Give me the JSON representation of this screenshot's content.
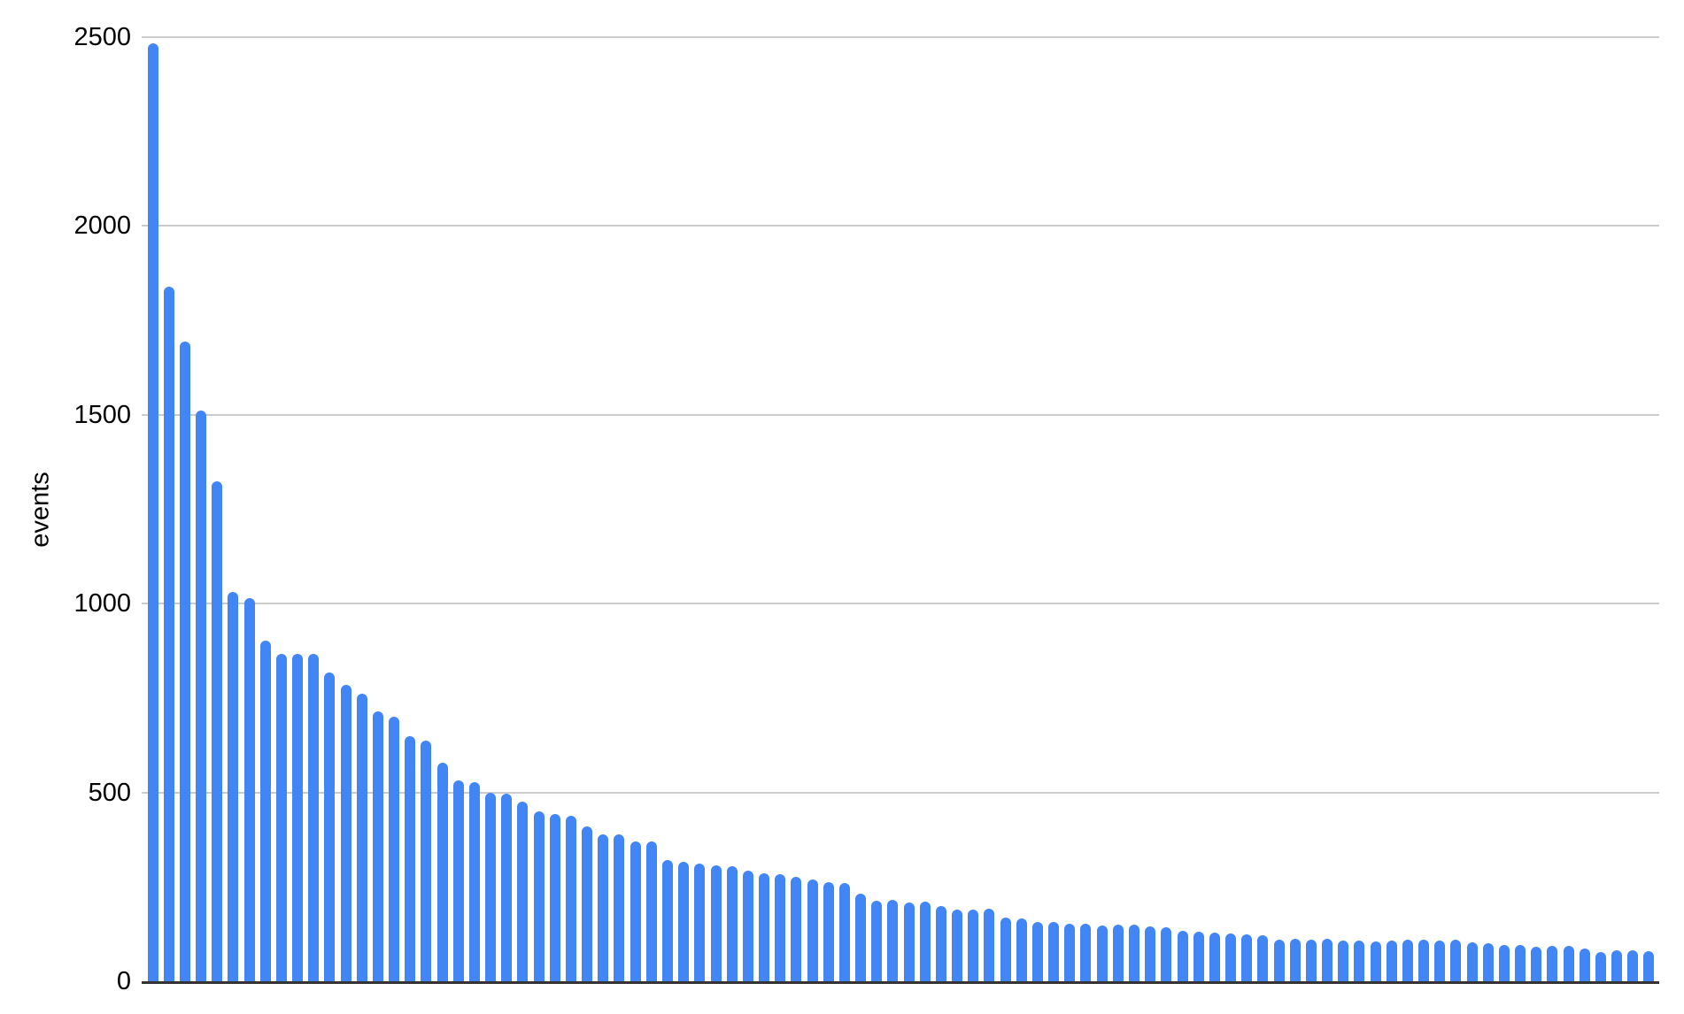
{
  "chart_data": {
    "type": "bar",
    "title": "",
    "xlabel": "",
    "ylabel": "events",
    "ylim": [
      0,
      2500
    ],
    "y_ticks": [
      0,
      500,
      1000,
      1500,
      2000,
      2500
    ],
    "grid": true,
    "legend_position": "none",
    "x_axis_labels": "none",
    "num_bars": 94,
    "bar_color": "#4285f4",
    "gridline_color": "#cccccc",
    "axis_line_color": "#333333",
    "values": [
      2483,
      1840,
      1693,
      1512,
      1323,
      1032,
      1014,
      901,
      868,
      866,
      868,
      817,
      785,
      761,
      714,
      700,
      649,
      637,
      579,
      531,
      527,
      499,
      496,
      475,
      449,
      442,
      438,
      410,
      389,
      388,
      371,
      370,
      321,
      316,
      311,
      308,
      304,
      293,
      287,
      283,
      276,
      270,
      263,
      261,
      232,
      213,
      216,
      208,
      210,
      200,
      190,
      190,
      192,
      169,
      167,
      158,
      157,
      152,
      152,
      148,
      150,
      149,
      145,
      143,
      134,
      131,
      130,
      126,
      124,
      122,
      111,
      112,
      110,
      112,
      108,
      108,
      105,
      108,
      110,
      110,
      108,
      110,
      103,
      101,
      96,
      96,
      91,
      94,
      94,
      87,
      78,
      82,
      82,
      80
    ]
  }
}
